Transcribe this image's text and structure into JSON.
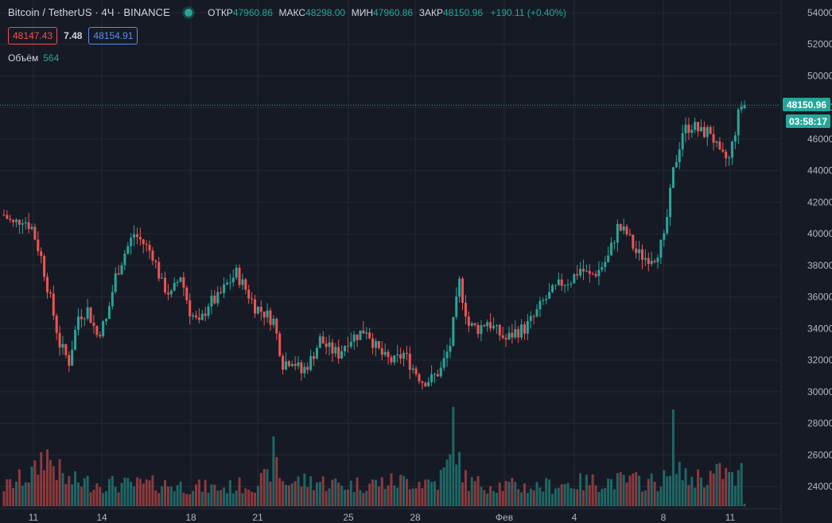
{
  "legend": {
    "title": "Bitcoin / TetherUS · 4Ч · BINANCE",
    "open_label": "ОТКР",
    "open": "47960.86",
    "high_label": "МАКС",
    "high": "48298.00",
    "low_label": "МИН",
    "low": "47960.86",
    "close_label": "ЗАКР",
    "close": "48150.96",
    "change": "+190.11 (+0.40%)"
  },
  "quote": {
    "bid": "48147.43",
    "spread": "7.48",
    "ask": "48154.91"
  },
  "volume": {
    "label": "Объём",
    "value": "564"
  },
  "price_tag": {
    "price": "48150.96",
    "countdown": "03:58:17"
  },
  "colors": {
    "background": "#161a25",
    "up": "#26a69a",
    "down": "#ef5350",
    "grid": "#242833",
    "text": "#b2b5be"
  },
  "chart_data": {
    "type": "candlestick",
    "ylim": [
      22400,
      55000
    ],
    "y_ticks": [
      "54000.00",
      "52000.00",
      "50000.00",
      "48000.00",
      "46000.00",
      "44000.00",
      "42000.00",
      "40000.00",
      "38000.00",
      "36000.00",
      "34000.00",
      "32000.00",
      "30000.00",
      "28000.00",
      "26000.00",
      "24000.00"
    ],
    "x_ticks": [
      "11",
      "14",
      "18",
      "21",
      "25",
      "28",
      "Фев",
      "4",
      "8",
      "11"
    ],
    "last_price": 48150.96,
    "close_path": [
      [
        0,
        41200
      ],
      [
        3,
        40600
      ],
      [
        6,
        41000
      ],
      [
        9,
        40400
      ],
      [
        12,
        38500
      ],
      [
        15,
        35800
      ],
      [
        18,
        33000
      ],
      [
        21,
        31900
      ],
      [
        24,
        34800
      ],
      [
        27,
        35200
      ],
      [
        30,
        33600
      ],
      [
        33,
        34500
      ],
      [
        36,
        37300
      ],
      [
        39,
        38800
      ],
      [
        42,
        40000
      ],
      [
        45,
        39400
      ],
      [
        48,
        38700
      ],
      [
        51,
        36800
      ],
      [
        54,
        36100
      ],
      [
        57,
        37400
      ],
      [
        60,
        35100
      ],
      [
        63,
        34200
      ],
      [
        66,
        35600
      ],
      [
        69,
        35900
      ],
      [
        72,
        36800
      ],
      [
        75,
        37500
      ],
      [
        78,
        36500
      ],
      [
        81,
        35400
      ],
      [
        84,
        35000
      ],
      [
        87,
        34500
      ],
      [
        90,
        31800
      ],
      [
        93,
        32100
      ],
      [
        96,
        31200
      ],
      [
        99,
        32000
      ],
      [
        102,
        33300
      ],
      [
        105,
        32700
      ],
      [
        108,
        32400
      ],
      [
        111,
        33300
      ],
      [
        114,
        33600
      ],
      [
        117,
        34000
      ],
      [
        120,
        32800
      ],
      [
        123,
        32100
      ],
      [
        126,
        31900
      ],
      [
        129,
        32400
      ],
      [
        132,
        31500
      ],
      [
        135,
        30700
      ],
      [
        138,
        30800
      ],
      [
        141,
        31400
      ],
      [
        144,
        33000
      ],
      [
        147,
        36900
      ],
      [
        150,
        34200
      ],
      [
        153,
        34000
      ],
      [
        156,
        34500
      ],
      [
        159,
        33800
      ],
      [
        162,
        33300
      ],
      [
        165,
        33800
      ],
      [
        168,
        34000
      ],
      [
        171,
        34700
      ],
      [
        174,
        35700
      ],
      [
        177,
        36300
      ],
      [
        180,
        36900
      ],
      [
        183,
        37100
      ],
      [
        186,
        37800
      ],
      [
        189,
        37300
      ],
      [
        192,
        37700
      ],
      [
        195,
        38500
      ],
      [
        198,
        40400
      ],
      [
        201,
        40000
      ],
      [
        204,
        38800
      ],
      [
        207,
        38500
      ],
      [
        210,
        38600
      ],
      [
        213,
        39600
      ],
      [
        216,
        43900
      ],
      [
        219,
        46500
      ],
      [
        222,
        46900
      ],
      [
        225,
        46400
      ],
      [
        228,
        46500
      ],
      [
        231,
        44900
      ],
      [
        234,
        44700
      ],
      [
        237,
        47500
      ],
      [
        238,
        48150.96
      ]
    ],
    "volume_path": [
      [
        0,
        180
      ],
      [
        10,
        320
      ],
      [
        13,
        520
      ],
      [
        17,
        360
      ],
      [
        20,
        240
      ],
      [
        30,
        220
      ],
      [
        40,
        200
      ],
      [
        50,
        210
      ],
      [
        60,
        190
      ],
      [
        70,
        170
      ],
      [
        80,
        210
      ],
      [
        85,
        260
      ],
      [
        87,
        480
      ],
      [
        90,
        230
      ],
      [
        100,
        240
      ],
      [
        110,
        200
      ],
      [
        120,
        220
      ],
      [
        130,
        240
      ],
      [
        140,
        230
      ],
      [
        144,
        420
      ],
      [
        145,
        880
      ],
      [
        147,
        380
      ],
      [
        150,
        220
      ],
      [
        160,
        200
      ],
      [
        170,
        180
      ],
      [
        180,
        210
      ],
      [
        190,
        230
      ],
      [
        200,
        240
      ],
      [
        210,
        230
      ],
      [
        215,
        270
      ],
      [
        216,
        670
      ],
      [
        218,
        360
      ],
      [
        220,
        260
      ],
      [
        230,
        300
      ],
      [
        232,
        330
      ],
      [
        236,
        240
      ],
      [
        238,
        320
      ],
      [
        239,
        18
      ]
    ]
  }
}
